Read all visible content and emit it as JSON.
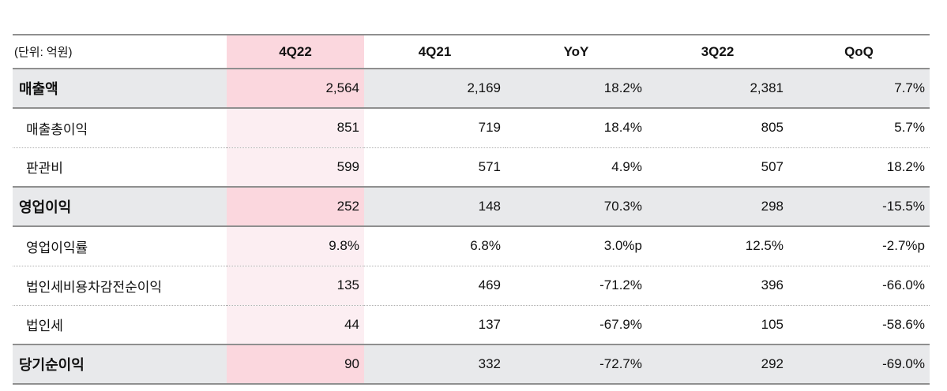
{
  "chart_data": {
    "type": "table",
    "unit_label": "(단위: 억원)",
    "columns": [
      "4Q22",
      "4Q21",
      "YoY",
      "3Q22",
      "QoQ"
    ],
    "highlighted_column": "4Q22",
    "rows": [
      {
        "label": "매출액",
        "emphasis": true,
        "values": [
          "2,564",
          "2,169",
          "18.2%",
          "2,381",
          "7.7%"
        ]
      },
      {
        "label": "매출총이익",
        "emphasis": false,
        "values": [
          "851",
          "719",
          "18.4%",
          "805",
          "5.7%"
        ]
      },
      {
        "label": "판관비",
        "emphasis": false,
        "values": [
          "599",
          "571",
          "4.9%",
          "507",
          "18.2%"
        ]
      },
      {
        "label": "영업이익",
        "emphasis": true,
        "values": [
          "252",
          "148",
          "70.3%",
          "298",
          "-15.5%"
        ]
      },
      {
        "label": "영업이익률",
        "emphasis": false,
        "values": [
          "9.8%",
          "6.8%",
          "3.0%p",
          "12.5%",
          "-2.7%p"
        ]
      },
      {
        "label": "법인세비용차감전순이익",
        "emphasis": false,
        "values": [
          "135",
          "469",
          "-71.2%",
          "396",
          "-66.0%"
        ]
      },
      {
        "label": "법인세",
        "emphasis": false,
        "values": [
          "44",
          "137",
          "-67.9%",
          "105",
          "-58.6%"
        ]
      },
      {
        "label": "당기순이익",
        "emphasis": true,
        "values": [
          "90",
          "332",
          "-72.7%",
          "292",
          "-69.0%"
        ]
      }
    ]
  },
  "colors": {
    "highlight_column_strong": "#fbd7de",
    "highlight_column_light": "#fceef2",
    "emphasis_row_bg": "#e8e9eb",
    "rule_dark": "#8f8f8f",
    "rule_light": "#b0b0b0"
  }
}
